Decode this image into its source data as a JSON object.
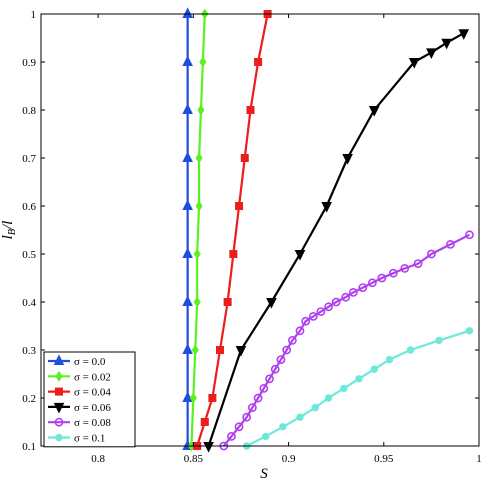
{
  "chart_data": {
    "type": "line",
    "title": "",
    "xlabel": "S",
    "ylabel_main": "l",
    "ylabel_sub": "B",
    "ylabel_tail": "/l",
    "xlim": [
      0.77,
      1.0
    ],
    "ylim": [
      0.1,
      1.0
    ],
    "xticks": [
      "0.8",
      "0.85",
      "0.9",
      "0.95",
      "1"
    ],
    "xtick_values": [
      0.8,
      0.85,
      0.9,
      0.95,
      1.0
    ],
    "yticks": [
      "0.1",
      "0.2",
      "0.3",
      "0.4",
      "0.5",
      "0.6",
      "0.7",
      "0.8",
      "0.9",
      "1"
    ],
    "ytick_values": [
      0.1,
      0.2,
      0.3,
      0.4,
      0.5,
      0.6,
      0.7,
      0.8,
      0.9,
      1.0
    ],
    "grid": false,
    "legend_position": "bottom-left",
    "series": [
      {
        "name": "σ = 0.0",
        "color": "#1f4fe0",
        "marker": "triangle-up",
        "x": [
          0.847,
          0.847,
          0.847,
          0.847,
          0.847,
          0.847,
          0.847,
          0.847,
          0.847,
          0.847
        ],
        "y": [
          0.1,
          0.2,
          0.3,
          0.4,
          0.5,
          0.6,
          0.7,
          0.8,
          0.9,
          1.0
        ]
      },
      {
        "name": "σ = 0.02",
        "color": "#5cf020",
        "marker": "diamond",
        "x": [
          0.849,
          0.85,
          0.851,
          0.852,
          0.852,
          0.853,
          0.853,
          0.854,
          0.855,
          0.856
        ],
        "y": [
          0.1,
          0.2,
          0.3,
          0.4,
          0.5,
          0.6,
          0.7,
          0.8,
          0.9,
          1.0
        ]
      },
      {
        "name": "σ = 0.04",
        "color": "#ee1c1c",
        "marker": "square",
        "x": [
          0.852,
          0.856,
          0.86,
          0.864,
          0.868,
          0.871,
          0.874,
          0.877,
          0.88,
          0.884,
          0.889
        ],
        "y": [
          0.1,
          0.15,
          0.2,
          0.3,
          0.4,
          0.5,
          0.6,
          0.7,
          0.8,
          0.9,
          1.0
        ]
      },
      {
        "name": "σ = 0.06",
        "color": "#000000",
        "marker": "triangle-down",
        "x": [
          0.858,
          0.875,
          0.891,
          0.906,
          0.92,
          0.931,
          0.945,
          0.966,
          0.975,
          0.983,
          0.992
        ],
        "y": [
          0.1,
          0.3,
          0.4,
          0.5,
          0.6,
          0.7,
          0.8,
          0.9,
          0.92,
          0.94,
          0.96
        ]
      },
      {
        "name": "σ = 0.08",
        "color": "#b040ee",
        "marker": "circle-open",
        "x": [
          0.866,
          0.87,
          0.874,
          0.878,
          0.881,
          0.884,
          0.887,
          0.89,
          0.893,
          0.896,
          0.899,
          0.902,
          0.906,
          0.909,
          0.913,
          0.917,
          0.921,
          0.925,
          0.93,
          0.934,
          0.939,
          0.944,
          0.949,
          0.955,
          0.961,
          0.968,
          0.975,
          0.985,
          0.995
        ],
        "y": [
          0.1,
          0.12,
          0.14,
          0.16,
          0.18,
          0.2,
          0.22,
          0.24,
          0.26,
          0.28,
          0.3,
          0.32,
          0.34,
          0.36,
          0.37,
          0.38,
          0.39,
          0.4,
          0.41,
          0.42,
          0.43,
          0.44,
          0.45,
          0.46,
          0.47,
          0.48,
          0.5,
          0.52,
          0.54
        ]
      },
      {
        "name": "σ = 0.1",
        "color": "#6ee8d8",
        "marker": "circle",
        "x": [
          0.878,
          0.888,
          0.897,
          0.906,
          0.914,
          0.921,
          0.929,
          0.937,
          0.945,
          0.953,
          0.964,
          0.979,
          0.995
        ],
        "y": [
          0.1,
          0.12,
          0.14,
          0.16,
          0.18,
          0.2,
          0.22,
          0.24,
          0.26,
          0.28,
          0.3,
          0.32,
          0.34
        ]
      }
    ]
  }
}
